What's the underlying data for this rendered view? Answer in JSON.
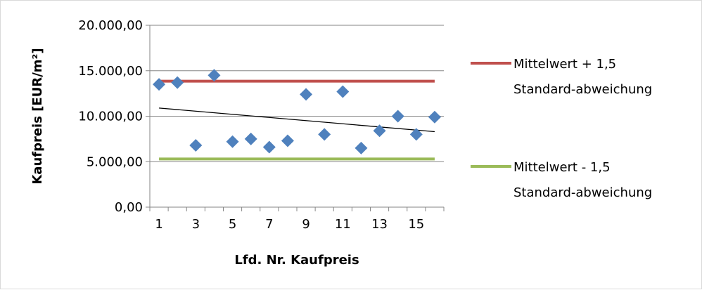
{
  "chart_data": {
    "type": "scatter",
    "title": "",
    "xlabel": "Lfd. Nr. Kaufpreis",
    "ylabel": "Kaufpreis [EUR/m²]",
    "ylim": [
      0,
      20000
    ],
    "xlim": [
      0.5,
      16.5
    ],
    "x_ticks": [
      1,
      3,
      5,
      7,
      9,
      11,
      13,
      15
    ],
    "x_tick_labels": [
      "1",
      "3",
      "5",
      "7",
      "9",
      "11",
      "13",
      "15"
    ],
    "y_ticks": [
      0,
      5000,
      10000,
      15000,
      20000
    ],
    "y_tick_labels": [
      "0,00",
      "5.000,00",
      "10.000,00",
      "15.000,00",
      "20.000,00"
    ],
    "grid": "horizontal",
    "legend_position": "right",
    "points": {
      "x": [
        1,
        2,
        3,
        4,
        5,
        6,
        7,
        8,
        9,
        10,
        11,
        12,
        13,
        14,
        15,
        16
      ],
      "y": [
        13500,
        13700,
        6800,
        14500,
        7200,
        7500,
        6600,
        7300,
        12400,
        8000,
        12700,
        6500,
        8400,
        10000,
        8000,
        9900
      ],
      "color": "#4f81bd",
      "marker": "diamond"
    },
    "trendline": {
      "x": [
        1,
        16
      ],
      "y": [
        10900,
        8300
      ],
      "color": "#000000"
    },
    "series": [
      {
        "name": "Mittelwert + 1,5 Standard-abweichung",
        "legend_lines": [
          "Mittelwert + 1,5",
          "Standard-abweichung"
        ],
        "value": 13850,
        "color": "#c0504d"
      },
      {
        "name": "Mittelwert - 1,5 Standard-abweichung",
        "legend_lines": [
          "Mittelwert - 1,5",
          "Standard-abweichung"
        ],
        "value": 5300,
        "color": "#9bbb59"
      }
    ]
  }
}
